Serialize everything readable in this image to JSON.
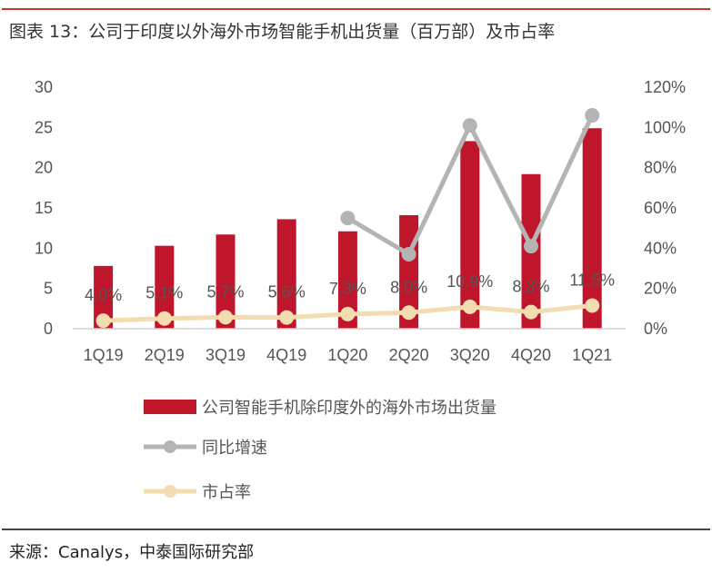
{
  "title": "图表 13：公司于印度以外海外市场智能手机出货量（百万部）及市占率",
  "source": "来源：Canalys，中泰国际研究部",
  "chart_data": {
    "type": "bar+line",
    "categories": [
      "1Q19",
      "2Q19",
      "3Q19",
      "4Q19",
      "1Q20",
      "2Q20",
      "3Q20",
      "4Q20",
      "1Q21"
    ],
    "left_axis": {
      "ylim": [
        0,
        30
      ],
      "ticks": [
        "0",
        "5",
        "10",
        "15",
        "20",
        "25",
        "30"
      ]
    },
    "right_axis": {
      "ylim": [
        0,
        120
      ],
      "ticks": [
        "0%",
        "20%",
        "40%",
        "60%",
        "80%",
        "100%",
        "120%"
      ]
    },
    "grid": false,
    "legend_position": "bottom",
    "series": [
      {
        "name": "公司智能手机除印度外的海外市场出货量",
        "type": "bar",
        "axis": "left",
        "color": "#c0162c",
        "values": [
          7.8,
          10.3,
          11.7,
          13.6,
          12.1,
          14.1,
          23.3,
          19.2,
          24.9
        ]
      },
      {
        "name": "同比增速",
        "type": "line",
        "axis": "right",
        "color": "#b4b4b4",
        "values": [
          null,
          null,
          null,
          null,
          55,
          37,
          101,
          41,
          106
        ]
      },
      {
        "name": "市占率",
        "type": "line",
        "axis": "right",
        "color": "#f2dcb0",
        "values": [
          4.0,
          5.1,
          5.7,
          5.6,
          7.3,
          8.0,
          10.9,
          8.3,
          11.5
        ],
        "labels": [
          "4.0%",
          "5.1%",
          "5.7%",
          "5.6%",
          "7.3%",
          "8.0%",
          "10.9%",
          "8.3%",
          "11.5%"
        ]
      }
    ]
  }
}
